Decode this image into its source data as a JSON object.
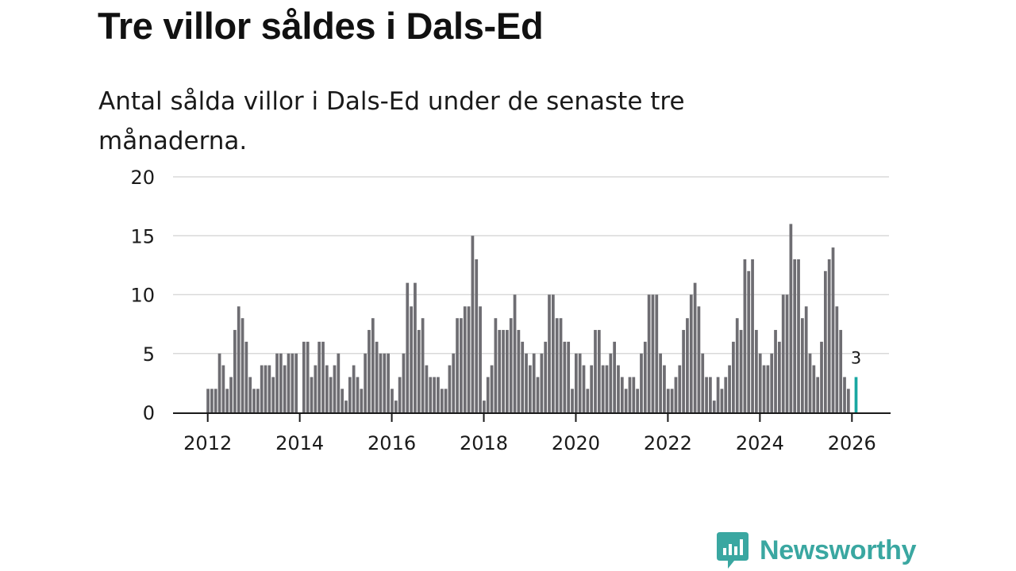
{
  "title": "Tre villor såldes i Dals-Ed",
  "subtitle": "Antal sålda villor i Dals-Ed under de senaste tre månaderna.",
  "brand": {
    "name": "Newsworthy",
    "color": "#3aa7a1"
  },
  "colors": {
    "bar": "#6e6d72",
    "highlight": "#19a7a2",
    "grid": "#d9d9d9",
    "axis": "#1a1a1a"
  },
  "chart_data": {
    "type": "bar",
    "x_start": "2012-01",
    "x_end": "2026-02",
    "xlim": [
      2012,
      2026.1
    ],
    "ylim": [
      0,
      20
    ],
    "yticks": [
      0,
      5,
      10,
      15,
      20
    ],
    "xticks": [
      2012,
      2014,
      2016,
      2018,
      2020,
      2022,
      2024,
      2026
    ],
    "values": [
      2,
      2,
      2,
      5,
      4,
      2,
      3,
      7,
      9,
      8,
      6,
      3,
      2,
      2,
      4,
      4,
      4,
      3,
      5,
      5,
      4,
      5,
      5,
      5,
      0,
      6,
      6,
      3,
      4,
      6,
      6,
      4,
      3,
      4,
      5,
      2,
      1,
      3,
      4,
      3,
      2,
      5,
      7,
      8,
      6,
      5,
      5,
      5,
      2,
      1,
      3,
      5,
      11,
      9,
      11,
      7,
      8,
      4,
      3,
      3,
      3,
      2,
      2,
      4,
      5,
      8,
      8,
      9,
      9,
      15,
      13,
      9,
      1,
      3,
      4,
      8,
      7,
      7,
      7,
      8,
      10,
      7,
      6,
      5,
      4,
      5,
      3,
      5,
      6,
      10,
      10,
      8,
      8,
      6,
      6,
      2,
      5,
      5,
      4,
      2,
      4,
      7,
      7,
      4,
      4,
      5,
      6,
      4,
      3,
      2,
      3,
      3,
      2,
      5,
      6,
      10,
      10,
      10,
      5,
      4,
      2,
      2,
      3,
      4,
      7,
      8,
      10,
      11,
      9,
      5,
      3,
      3,
      1,
      3,
      2,
      3,
      4,
      6,
      8,
      7,
      13,
      12,
      13,
      7,
      5,
      4,
      4,
      5,
      7,
      6,
      10,
      10,
      16,
      13,
      13,
      8,
      9,
      5,
      4,
      3,
      6,
      12,
      13,
      14,
      9,
      7,
      3,
      2,
      0,
      3
    ],
    "highlight_last": true,
    "last_value_label": "3",
    "title": "Tre villor såldes i Dals-Ed",
    "xlabel": "",
    "ylabel": ""
  }
}
